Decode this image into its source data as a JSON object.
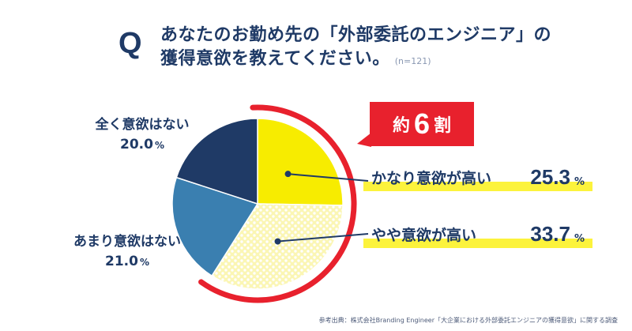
{
  "header": {
    "q_mark": "Q",
    "title_line1": "あなたのお勤め先の「外部委託のエンジニア」の",
    "title_line2": "獲得意欲を教えてください。",
    "sample_size": "(n=121)"
  },
  "callout": {
    "prefix": "約",
    "number": "6",
    "suffix": "割"
  },
  "source_note": "参考出典：株式会社Branding Engineer「大企業における外部委託エンジニアの獲得意欲」に関する調査",
  "colors": {
    "navy": "#1f3a66",
    "steel_blue": "#3a7fb0",
    "yellow": "#f7ec00",
    "pale_yellow": "#fbf6b4",
    "red": "#e8212d",
    "highlight": "#fcf33c"
  },
  "chart_data": {
    "type": "pie",
    "title": "",
    "start": "12 o'clock, clockwise",
    "slices": [
      {
        "label": "かなり意欲が高い",
        "value": 25.3,
        "display": "25.3",
        "unit": "%",
        "fill": "yellow"
      },
      {
        "label": "やや意欲が高い",
        "value": 33.7,
        "display": "33.7",
        "unit": "%",
        "fill": "dotted-pale-yellow"
      },
      {
        "label": "あまり意欲はない",
        "value": 21.0,
        "display": "21.0",
        "unit": "%",
        "fill": "steel-blue"
      },
      {
        "label": "全く意欲はない",
        "value": 20.0,
        "display": "20.0",
        "unit": "%",
        "fill": "navy"
      }
    ]
  }
}
